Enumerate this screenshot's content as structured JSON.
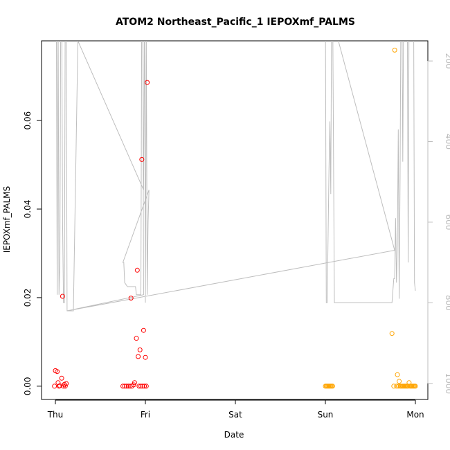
{
  "chart_data": {
    "type": "scatter",
    "title": "ATOM2 Northeast_Pacific_1 IEPOXmf_PALMS",
    "xlabel": "Date",
    "ylabel": "IEPOXmf_PALMS",
    "x_ticks": [
      "Thu",
      "Fri",
      "Sat",
      "Sun",
      "Mon"
    ],
    "x_range_days": [
      -0.15,
      4.1
    ],
    "ylim": [
      -0.003,
      0.078
    ],
    "y_ticks": [
      0.0,
      0.02,
      0.04,
      0.06
    ],
    "y_tick_labels": [
      "0.00",
      "0.02",
      "0.04",
      "0.06"
    ],
    "secondary_axis": {
      "label": "",
      "reversed": true,
      "range": [
        1040,
        150
      ],
      "ticks": [
        200,
        400,
        600,
        800,
        1000
      ],
      "color": "#bebebe"
    },
    "grid": false,
    "legend": "none",
    "series": [
      {
        "color": "#ff0000",
        "points": [
          [
            0.0,
            0.0035
          ],
          [
            0.02,
            0.0033
          ],
          [
            0.03,
            0.0008
          ],
          [
            0.05,
            0.0001
          ],
          [
            0.07,
            0.0018
          ],
          [
            0.08,
            0.0203
          ],
          [
            0.09,
            0.0
          ],
          [
            0.1,
            0.0004
          ],
          [
            0.04,
            0.0
          ],
          [
            0.11,
            0.0
          ],
          [
            -0.01,
            0.0
          ],
          [
            0.12,
            0.0006
          ],
          [
            0.75,
            0.0
          ],
          [
            0.77,
            0.0
          ],
          [
            0.79,
            0.0
          ],
          [
            0.81,
            0.0
          ],
          [
            0.83,
            0.0
          ],
          [
            0.85,
            0.0
          ],
          [
            0.87,
            0.0003
          ],
          [
            0.84,
            0.0199
          ],
          [
            0.88,
            0.0008
          ],
          [
            0.9,
            0.0108
          ],
          [
            0.91,
            0.0262
          ],
          [
            0.92,
            0.0067
          ],
          [
            0.93,
            0.0
          ],
          [
            0.94,
            0.0082
          ],
          [
            0.95,
            0.0
          ],
          [
            0.96,
            0.0512
          ],
          [
            0.97,
            0.0
          ],
          [
            0.98,
            0.0126
          ],
          [
            0.99,
            0.0
          ],
          [
            1.0,
            0.0065
          ],
          [
            1.01,
            0.0
          ],
          [
            1.02,
            0.0686
          ]
        ]
      },
      {
        "color": "#ffa500",
        "points": [
          [
            3.0,
            0.0
          ],
          [
            3.01,
            0.0
          ],
          [
            3.02,
            0.0
          ],
          [
            3.03,
            0.0
          ],
          [
            3.04,
            0.0
          ],
          [
            3.05,
            0.0
          ],
          [
            3.06,
            0.0
          ],
          [
            3.07,
            0.0
          ],
          [
            3.08,
            0.0
          ],
          [
            3.74,
            0.0119
          ],
          [
            3.76,
            0.0
          ],
          [
            3.77,
            0.0759
          ],
          [
            3.79,
            0.0
          ],
          [
            3.8,
            0.0026
          ],
          [
            3.81,
            0.0
          ],
          [
            3.82,
            0.0011
          ],
          [
            3.83,
            0.0
          ],
          [
            3.84,
            0.0
          ],
          [
            3.85,
            0.0
          ],
          [
            3.86,
            0.0
          ],
          [
            3.87,
            0.0
          ],
          [
            3.88,
            0.0
          ],
          [
            3.89,
            0.0
          ],
          [
            3.9,
            0.0
          ],
          [
            3.91,
            0.0
          ],
          [
            3.92,
            0.0
          ],
          [
            3.93,
            0.0008
          ],
          [
            3.94,
            0.0
          ],
          [
            3.95,
            0.0
          ],
          [
            3.96,
            0.0
          ],
          [
            3.97,
            0.0
          ],
          [
            3.98,
            0.0
          ],
          [
            3.99,
            0.0
          ],
          [
            4.0,
            0.0
          ]
        ]
      }
    ],
    "altitude_track": {
      "color": "#bebebe",
      "points": [
        [
          -0.02,
          30
        ],
        [
          0.01,
          30
        ],
        [
          0.02,
          780
        ],
        [
          0.03,
          40
        ],
        [
          0.04,
          780
        ],
        [
          0.05,
          700
        ],
        [
          0.06,
          30
        ],
        [
          0.07,
          40
        ],
        [
          0.08,
          600
        ],
        [
          0.09,
          800
        ],
        [
          0.1,
          800
        ],
        [
          0.11,
          30
        ],
        [
          0.12,
          30
        ],
        [
          0.13,
          820
        ],
        [
          0.2,
          820
        ],
        [
          0.25,
          150
        ],
        [
          0.98,
          520
        ],
        [
          0.99,
          30
        ],
        [
          1.0,
          800
        ],
        [
          1.01,
          120
        ],
        [
          1.02,
          780
        ],
        [
          1.03,
          600
        ],
        [
          1.04,
          520
        ],
        [
          0.75,
          700
        ],
        [
          0.76,
          700
        ],
        [
          0.77,
          750
        ],
        [
          0.8,
          760
        ],
        [
          0.85,
          760
        ],
        [
          0.87,
          760
        ],
        [
          0.88,
          760
        ],
        [
          0.89,
          760
        ],
        [
          0.9,
          780
        ],
        [
          0.92,
          780
        ],
        [
          0.94,
          780
        ],
        [
          0.95,
          780
        ],
        [
          0.96,
          30
        ],
        [
          0.97,
          30
        ],
        [
          0.98,
          780
        ],
        [
          0.13,
          820
        ],
        [
          3.76,
          670
        ],
        [
          3.77,
          670
        ],
        [
          3.0,
          30
        ],
        [
          3.01,
          800
        ],
        [
          3.02,
          800
        ],
        [
          3.04,
          470
        ],
        [
          3.05,
          350
        ],
        [
          3.06,
          530
        ],
        [
          3.07,
          30
        ],
        [
          3.08,
          30
        ],
        [
          3.1,
          800
        ],
        [
          3.74,
          800
        ],
        [
          3.76,
          740
        ],
        [
          3.77,
          740
        ],
        [
          3.78,
          590
        ],
        [
          3.79,
          750
        ],
        [
          3.8,
          650
        ],
        [
          3.81,
          370
        ],
        [
          3.82,
          790
        ],
        [
          3.83,
          490
        ],
        [
          3.84,
          30
        ],
        [
          3.85,
          30
        ],
        [
          3.86,
          450
        ],
        [
          3.87,
          30
        ],
        [
          3.88,
          30
        ],
        [
          3.89,
          30
        ],
        [
          3.9,
          30
        ],
        [
          3.91,
          30
        ],
        [
          3.92,
          700
        ],
        [
          3.93,
          30
        ],
        [
          3.94,
          30
        ],
        [
          3.95,
          30
        ],
        [
          3.96,
          30
        ],
        [
          3.97,
          30
        ],
        [
          3.98,
          30
        ],
        [
          3.99,
          750
        ],
        [
          4.0,
          770
        ]
      ]
    }
  }
}
